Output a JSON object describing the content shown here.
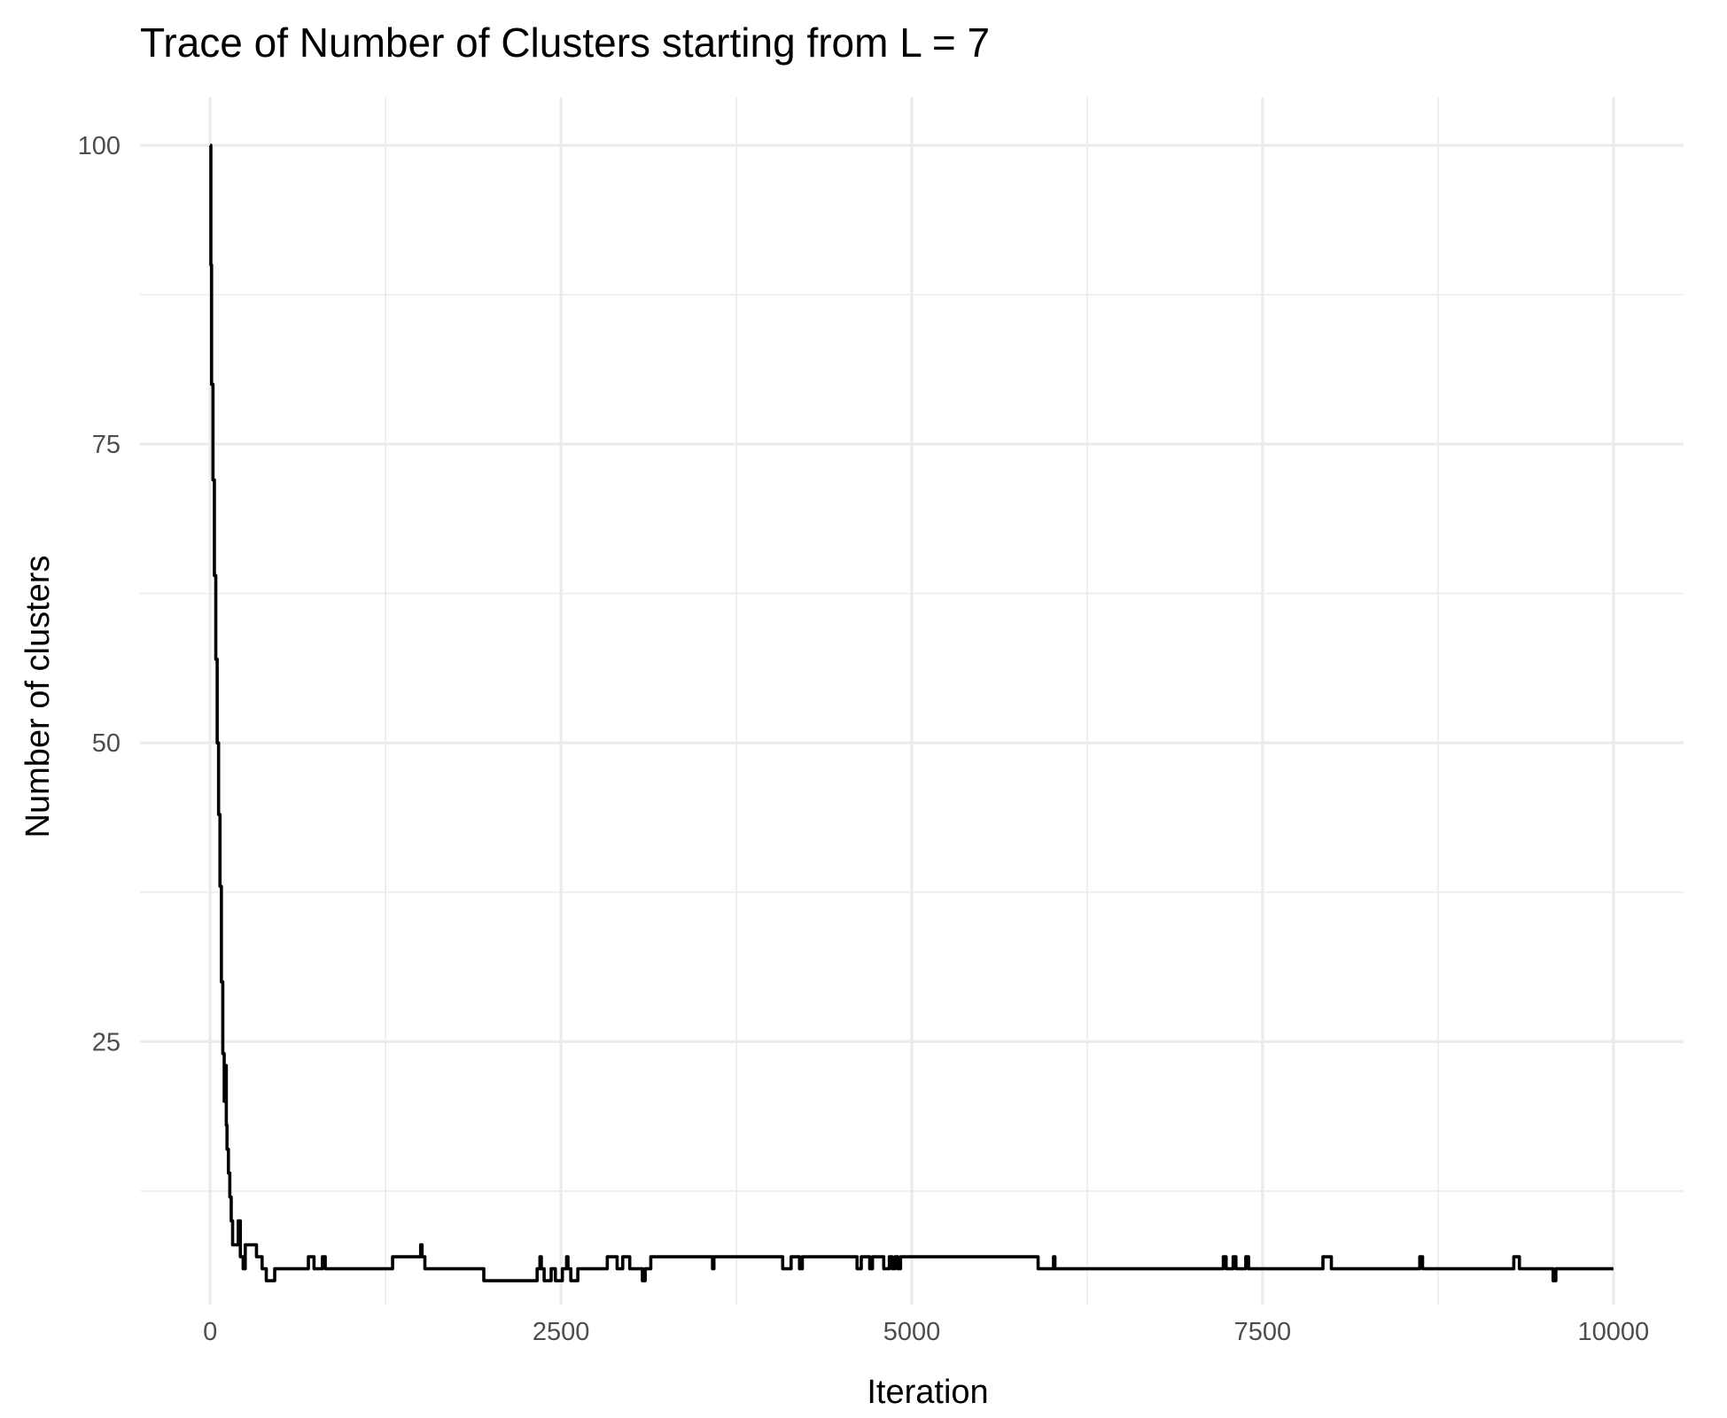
{
  "chart_data": {
    "type": "line",
    "title": "Trace of Number of Clusters starting from L = 7",
    "xlabel": "Iteration",
    "ylabel": "Number of clusters",
    "xlim": [
      -500,
      10500
    ],
    "ylim": [
      3,
      104
    ],
    "x_ticks": [
      0,
      2500,
      5000,
      7500,
      10000
    ],
    "x_tick_labels": [
      "0",
      "2500",
      "5000",
      "7500",
      "10000"
    ],
    "y_ticks": [
      25,
      50,
      75,
      100
    ],
    "y_tick_labels": [
      "25",
      "50",
      "75",
      "100"
    ],
    "grid": true,
    "legend": "none",
    "line_style": "step",
    "series": [
      {
        "color": "#000000",
        "x": [
          0,
          5,
          10,
          20,
          30,
          40,
          50,
          60,
          70,
          80,
          90,
          100,
          110,
          115,
          120,
          130,
          140,
          150,
          160,
          170,
          185,
          200,
          215,
          235,
          250,
          280,
          330,
          370,
          400,
          460,
          700,
          740,
          800,
          820,
          880,
          1300,
          1500,
          1510,
          1530,
          1950,
          2050,
          2330,
          2350,
          2360,
          2380,
          2430,
          2460,
          2510,
          2540,
          2550,
          2570,
          2620,
          2830,
          2900,
          2940,
          2990,
          3050,
          3080,
          3100,
          3140,
          3580,
          3590,
          4080,
          4140,
          4200,
          4220,
          4230,
          4610,
          4640,
          4700,
          4720,
          4780,
          4800,
          4840,
          4860,
          4880,
          4900,
          4920,
          5900,
          6010,
          6020,
          6050,
          7220,
          7240,
          7290,
          7310,
          7380,
          7400,
          7930,
          7990,
          8620,
          8640,
          9290,
          9330,
          9570,
          9590,
          10000
        ],
        "y": [
          100,
          90,
          80,
          72,
          64,
          57,
          50,
          44,
          38,
          30,
          24,
          20,
          23,
          18,
          16,
          14,
          12,
          10,
          8,
          8,
          8,
          10,
          7,
          6,
          8,
          8,
          7,
          6,
          5,
          6,
          7,
          6,
          7,
          6,
          6,
          7,
          8,
          7,
          6,
          5,
          5,
          6,
          7,
          6,
          5,
          6,
          5,
          6,
          7,
          6,
          5,
          6,
          7,
          6,
          7,
          6,
          6,
          5,
          6,
          7,
          6,
          7,
          6,
          7,
          6,
          7,
          7,
          6,
          7,
          6,
          7,
          7,
          6,
          7,
          6,
          7,
          6,
          7,
          6,
          7,
          6,
          6,
          7,
          6,
          7,
          6,
          7,
          6,
          7,
          6,
          7,
          6,
          7,
          6,
          5,
          6,
          6
        ]
      }
    ]
  }
}
